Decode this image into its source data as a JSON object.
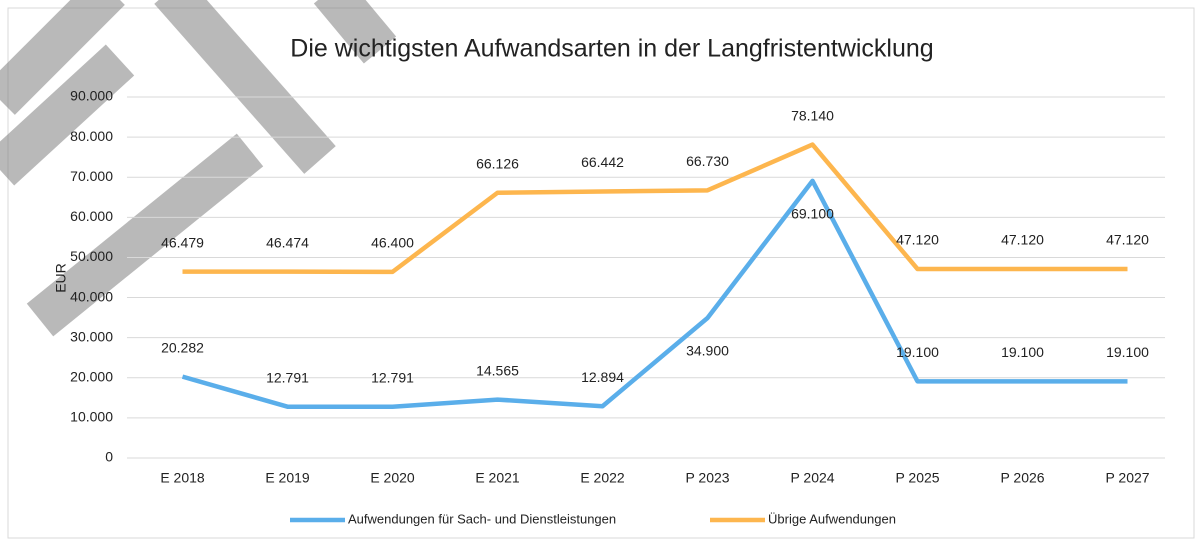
{
  "chart_data": {
    "type": "line",
    "title": "Die wichtigsten Aufwandsarten in der Langfristentwicklung",
    "y_label": "EUR",
    "categories": [
      "E 2018",
      "E 2019",
      "E 2020",
      "E 2021",
      "E 2022",
      "P 2023",
      "P 2024",
      "P 2025",
      "P 2026",
      "P 2027"
    ],
    "series": [
      {
        "name": "Aufwendungen für Sach- und Dienstleistungen",
        "color": "#5aaeea",
        "values": [
          20282,
          12791,
          12791,
          14565,
          12894,
          34900,
          69100,
          19100,
          19100,
          19100
        ],
        "value_labels": [
          "20.282",
          "12.791",
          "12.791",
          "14.565",
          "12.894",
          "34.900",
          "69.100",
          "19.100",
          "19.100",
          "19.100"
        ]
      },
      {
        "name": "Übrige Aufwendungen",
        "color": "#fdb64e",
        "values": [
          46479,
          46474,
          46400,
          66126,
          66442,
          66730,
          78140,
          47120,
          47120,
          47120
        ],
        "value_labels": [
          "46.479",
          "46.474",
          "46.400",
          "66.126",
          "66.442",
          "66.730",
          "78.140",
          "47.120",
          "47.120",
          "47.120"
        ]
      }
    ],
    "ylim": [
      0,
      90000
    ],
    "yticks": [
      0,
      {
        "value": 10000,
        "label": "10.000"
      },
      {
        "value": 20000,
        "label": "20.000"
      },
      {
        "value": 30000,
        "label": "30.000"
      },
      {
        "value": 40000,
        "label": "40.000"
      },
      {
        "value": 50000,
        "label": "50.000"
      },
      {
        "value": 60000,
        "label": "60.000"
      },
      {
        "value": 70000,
        "label": "70.000"
      },
      {
        "value": 80000,
        "label": "80.000"
      },
      {
        "value": 90000,
        "label": "90.000"
      }
    ],
    "grid": true,
    "legend": "bottom"
  }
}
